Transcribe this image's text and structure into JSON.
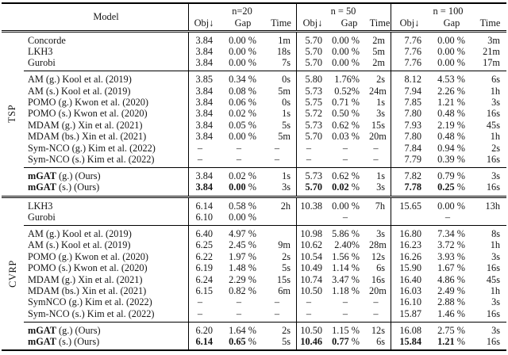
{
  "table": {
    "header": {
      "model": "Model",
      "groups": [
        {
          "title": "n=20",
          "cols": [
            "Obj↓",
            "Gap",
            "Time"
          ]
        },
        {
          "title": "n = 50",
          "cols": [
            "Obj↓",
            "Gap",
            "Time"
          ]
        },
        {
          "title": "n = 100",
          "cols": [
            "Obj↓",
            "Gap",
            "Time"
          ]
        }
      ]
    },
    "sections": [
      {
        "label": "TSP",
        "row_groups": [
          {
            "rows": [
              {
                "model": "Concorde",
                "cells": [
                  "3.84",
                  "0.00 %",
                  "1m",
                  "5.70",
                  "0.00 %",
                  "2m",
                  "7.76",
                  "0.00 %",
                  "3m"
                ]
              },
              {
                "model": "LKH3",
                "cells": [
                  "3.84",
                  "0.00 %",
                  "18s",
                  "5.70",
                  "0.00 %",
                  "5m",
                  "7.76",
                  "0.00 %",
                  "21m"
                ]
              },
              {
                "model": "Gurobi",
                "cells": [
                  "3.84",
                  "0.00 %",
                  "7s",
                  "5.70",
                  "0.00 %",
                  "2m",
                  "7.76",
                  "0.00 %",
                  "17m"
                ]
              }
            ]
          },
          {
            "rows": [
              {
                "model": "AM (g.) Kool et al. (2019)",
                "cells": [
                  "3.85",
                  "0.34 %",
                  "0s",
                  "5.80",
                  "1.76%",
                  "2s",
                  "8.12",
                  "4.53 %",
                  "6s"
                ]
              },
              {
                "model": "AM (s.) Kool et al. (2019)",
                "cells": [
                  "3.84",
                  "0.08 %",
                  "5m",
                  "5.73",
                  "0.52%",
                  "24m",
                  "7.94",
                  "2.26 %",
                  "1h"
                ]
              },
              {
                "model": "POMO (g.) Kwon et al. (2020)",
                "cells": [
                  "3.84",
                  "0.06 %",
                  "0s",
                  "5.75",
                  "0.71 %",
                  "1s",
                  "7.85",
                  "1.21 %",
                  "3s"
                ]
              },
              {
                "model": "POMO (s.) Kwon et al. (2020)",
                "cells": [
                  "3.84",
                  "0.02 %",
                  "1s",
                  "5.72",
                  "0.50 %",
                  "3s",
                  "7.80",
                  "0.48 %",
                  "16s"
                ]
              },
              {
                "model": "MDAM (g.) Xin et al. (2021)",
                "cells": [
                  "3.84",
                  "0.05 %",
                  "5s",
                  "5.73",
                  "0.62 %",
                  "15s",
                  "7.93",
                  "2.19 %",
                  "45s"
                ]
              },
              {
                "model": "MDAM (bs.) Xin et al. (2021)",
                "cells": [
                  "3.84",
                  "0.00 %",
                  "5m",
                  "5.70",
                  "0.03 %",
                  "20m",
                  "7.80",
                  "0.48 %",
                  "1h"
                ]
              },
              {
                "model": "Sym-NCO (g.) Kim et al. (2022)",
                "cells": [
                  "–",
                  "–",
                  "–",
                  "–",
                  "–",
                  "–",
                  "7.84",
                  "0.94 %",
                  "2s"
                ]
              },
              {
                "model": "Sym-NCO (s.) Kim et al. (2022)",
                "cells": [
                  "–",
                  "–",
                  "–",
                  "–",
                  "–",
                  "–",
                  "7.79",
                  "0.39 %",
                  "16s"
                ]
              }
            ]
          },
          {
            "rows": [
              {
                "model_bold": "mGAT",
                "model": " (g.) (Ours)",
                "cells": [
                  "3.84",
                  "0.02 %",
                  "1s",
                  "5.73",
                  "0.62 %",
                  "1s",
                  "7.82",
                  "0.79 %",
                  "3s"
                ]
              },
              {
                "model_bold": "mGAT",
                "model": " (s.) (Ours)",
                "cells": [
                  "3.84",
                  "0.00 %",
                  "3s",
                  "5.70",
                  "0.02 %",
                  "3s",
                  "7.78",
                  "0.25 %",
                  "16s"
                ],
                "bold_cells": [
                  0,
                  1,
                  3,
                  4,
                  6,
                  7
                ]
              }
            ]
          }
        ]
      },
      {
        "label": "CVRP",
        "row_groups": [
          {
            "rows": [
              {
                "model": "LKH3",
                "cells": [
                  "6.14",
                  "0.58 %",
                  "2h",
                  "10.38",
                  "0.00 %",
                  "7h",
                  "15.65",
                  "0.00 %",
                  "13h"
                ]
              },
              {
                "model": "Gurobi",
                "cells": [
                  "6.10",
                  "0.00 %",
                  "",
                  "",
                  "–",
                  "",
                  "",
                  "–",
                  ""
                ]
              }
            ]
          },
          {
            "rows": [
              {
                "model": "AM (g.) Kool et al. (2019)",
                "cells": [
                  "6.40",
                  "4.97 %",
                  "",
                  "10.98",
                  "5.86 %",
                  "3s",
                  "16.80",
                  "7.34 %",
                  "8s"
                ]
              },
              {
                "model": "AM (s.) Kool et al. (2019)",
                "cells": [
                  "6.25",
                  "2.45 %",
                  "9m",
                  "10.62",
                  "2.40%",
                  "28m",
                  "16.23",
                  "3.72 %",
                  "1h"
                ]
              },
              {
                "model": "POMO (g.) Kwon et al. (2020)",
                "cells": [
                  "6.22",
                  "1.97 %",
                  "2s",
                  "10.54",
                  "1.56 %",
                  "12s",
                  "16.26",
                  "3.93 %",
                  "3s"
                ]
              },
              {
                "model": "POMO (s.) Kwon et al. (2020)",
                "cells": [
                  "6.19",
                  "1.48 %",
                  "5s",
                  "10.49",
                  "1.14 %",
                  "6s",
                  "15.90",
                  "1.67 %",
                  "16s"
                ]
              },
              {
                "model": "MDAM (g.) Xin et al. (2021)",
                "cells": [
                  "6.24",
                  "2.29 %",
                  "15s",
                  "10.74",
                  "3.47 %",
                  "16s",
                  "16.40",
                  "4.86 %",
                  "45s"
                ]
              },
              {
                "model": "MDAM (bs.) Xin et al. (2021)",
                "cells": [
                  "6.15",
                  "0.82 %",
                  "6m",
                  "10.50",
                  "1.18 %",
                  "20m",
                  "16.03",
                  "2.49 %",
                  "1h"
                ]
              },
              {
                "model": "SymNCO (g.) Kim et al. (2022)",
                "cells": [
                  "–",
                  "–",
                  "–",
                  "–",
                  "–",
                  "–",
                  "16.10",
                  "2.88 %",
                  "3s"
                ]
              },
              {
                "model": "Sym-NCO (s.) Kim et al. (2022)",
                "cells": [
                  "–",
                  "–",
                  "–",
                  "–",
                  "–",
                  "–",
                  "15.87",
                  "1.46 %",
                  "16s"
                ]
              }
            ]
          },
          {
            "rows": [
              {
                "model_bold": "mGAT",
                "model": " (g.) (Ours)",
                "cells": [
                  "6.20",
                  "1.64 %",
                  "2s",
                  "10.50",
                  "1.15 %",
                  "12s",
                  "16.08",
                  "2.75 %",
                  "3s"
                ]
              },
              {
                "model_bold": "mGAT",
                "model": " (s.) (Ours)",
                "cells": [
                  "6.14",
                  "0.65 %",
                  "5s",
                  "10.46",
                  "0.77 %",
                  "6s",
                  "15.84",
                  "1.21 %",
                  "16s"
                ],
                "bold_cells": [
                  0,
                  1,
                  3,
                  4,
                  6,
                  7
                ]
              }
            ]
          }
        ]
      }
    ]
  }
}
